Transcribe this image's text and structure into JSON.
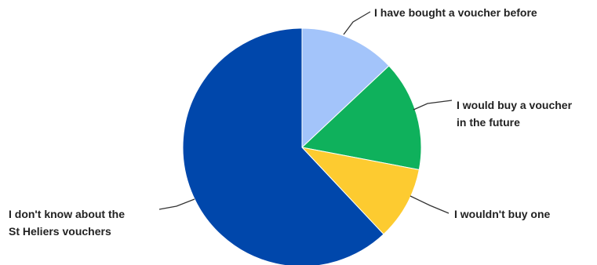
{
  "chart_data": {
    "type": "pie",
    "title": "",
    "start_angle_deg": 0,
    "direction": "clockwise",
    "slices": [
      {
        "label": "I have bought a voucher before",
        "value": 13,
        "color": "#a3c4fa"
      },
      {
        "label": "I would buy a voucher in the future",
        "value": 15,
        "color": "#0fb15c"
      },
      {
        "label": "I wouldn't buy one",
        "value": 10,
        "color": "#fdcb30"
      },
      {
        "label": "I don't know about the St Heliers vouchers",
        "value": 62,
        "color": "#0047ab"
      }
    ]
  }
}
